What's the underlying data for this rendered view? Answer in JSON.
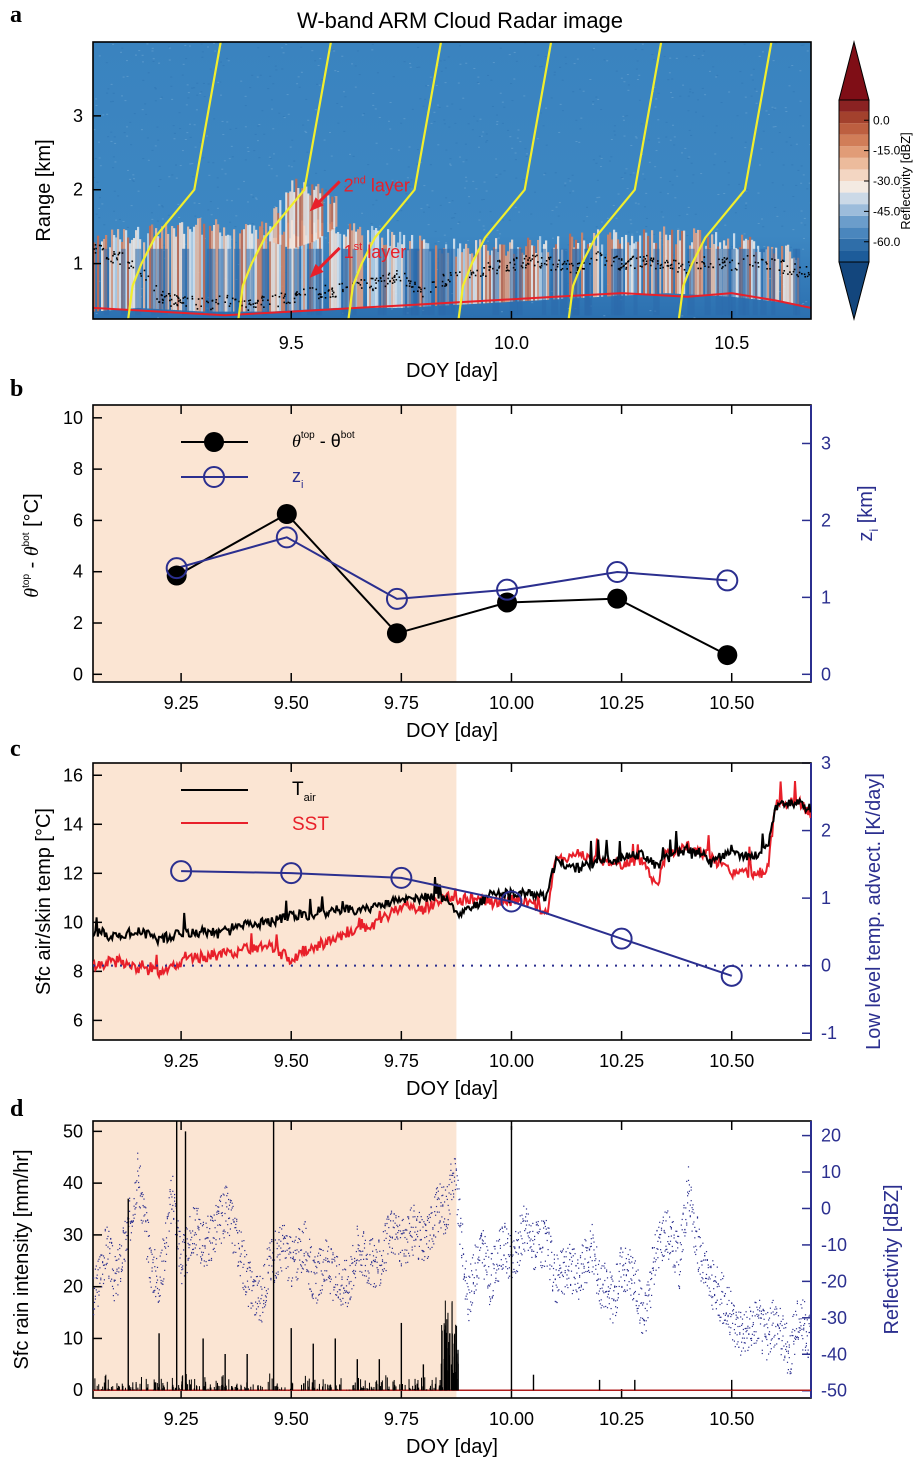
{
  "figure_title": "W-band ARM Cloud Radar image",
  "panel_labels": [
    "a",
    "b",
    "c",
    "d"
  ],
  "colors": {
    "black": "#000000",
    "red": "#e8202a",
    "blue": "#2b2f8f",
    "yellow": "#f2ee2c",
    "shade": "#fbe5d3"
  },
  "chart_data": [
    {
      "id": "a",
      "type": "heatmap",
      "title": "W-band ARM Cloud Radar image",
      "xlabel": "DOY [day]",
      "ylabel": "Range [km]",
      "xlim": [
        9.05,
        10.68
      ],
      "ylim": [
        0.25,
        4.0
      ],
      "xticks": [
        "9.5",
        "10.0",
        "10.5"
      ],
      "xtick_values": [
        9.5,
        10.0,
        10.5
      ],
      "yticks": [
        "1",
        "2",
        "3"
      ],
      "ytick_values": [
        1,
        2,
        3
      ],
      "colorbar": {
        "label": "Reflectivity [dBZ]",
        "ticks": [
          "0.0",
          "-15.0",
          "-30.0",
          "-45.0",
          "-60.0"
        ],
        "tick_values": [
          0,
          -15,
          -30,
          -45,
          -60
        ],
        "range": [
          -70,
          10
        ]
      },
      "annotations": [
        {
          "text": "2",
          "sup": "nd",
          "rest": " layer",
          "x": 9.56,
          "y": 1.95
        },
        {
          "text": "1",
          "sup": "st",
          "rest": " layer",
          "x": 9.56,
          "y": 1.05
        }
      ],
      "cloud_layers": [
        {
          "name": "1st layer",
          "x": [
            9.05,
            9.15,
            9.3,
            9.45,
            9.6,
            9.75,
            9.9,
            10.05,
            10.2,
            10.35,
            10.5,
            10.65
          ],
          "base": [
            0.35,
            0.4,
            0.35,
            0.35,
            0.4,
            0.4,
            0.45,
            0.5,
            0.55,
            0.6,
            0.55,
            0.45
          ],
          "top": [
            1.3,
            1.4,
            1.5,
            1.45,
            1.5,
            1.3,
            1.2,
            1.25,
            1.35,
            1.4,
            1.3,
            1.1
          ]
        },
        {
          "name": "2nd layer",
          "x": [
            9.45,
            9.5,
            9.55,
            9.6
          ],
          "base": [
            1.3,
            1.2,
            1.3,
            1.5
          ],
          "top": [
            1.6,
            2.05,
            2.0,
            1.85
          ]
        }
      ],
      "cloud_base_series": {
        "x": [
          9.05,
          9.1,
          9.15,
          9.2,
          9.25,
          9.3,
          9.35,
          9.4,
          9.45,
          9.5,
          9.55,
          9.6,
          9.65,
          9.7,
          9.75,
          9.8,
          9.85,
          9.9,
          9.95,
          10.0,
          10.05,
          10.1,
          10.15,
          10.2,
          10.25,
          10.3,
          10.35,
          10.4,
          10.45,
          10.5,
          10.55,
          10.6,
          10.65
        ],
        "y": [
          1.2,
          1.1,
          1.0,
          0.55,
          0.5,
          0.45,
          0.5,
          0.45,
          0.5,
          0.55,
          0.6,
          0.65,
          0.7,
          0.75,
          0.85,
          0.6,
          0.8,
          0.85,
          0.95,
          1.0,
          1.05,
          1.0,
          0.95,
          1.1,
          1.0,
          1.05,
          1.0,
          0.95,
          1.05,
          1.0,
          1.05,
          1.0,
          0.9
        ]
      },
      "surface_series": {
        "x": [
          9.05,
          9.2,
          9.35,
          9.5,
          9.65,
          9.8,
          9.95,
          10.1,
          10.25,
          10.4,
          10.5,
          10.6,
          10.68
        ],
        "y": [
          0.4,
          0.35,
          0.3,
          0.35,
          0.4,
          0.45,
          0.5,
          0.55,
          0.6,
          0.55,
          0.6,
          0.5,
          0.4
        ]
      },
      "sonde_tracks": [
        {
          "start": 9.13,
          "end": 9.34
        },
        {
          "start": 9.38,
          "end": 9.59
        },
        {
          "start": 9.63,
          "end": 9.84
        },
        {
          "start": 9.88,
          "end": 10.09
        },
        {
          "start": 10.13,
          "end": 10.34
        },
        {
          "start": 10.38,
          "end": 10.59
        }
      ]
    },
    {
      "id": "b",
      "type": "line",
      "xlabel": "DOY [day]",
      "ylabel": "θtop - θbot [°C]",
      "y2label": "zi [km]",
      "xlim": [
        9.05,
        10.68
      ],
      "ylim": [
        -0.3,
        10.5
      ],
      "y2lim": [
        -0.1,
        3.5
      ],
      "xticks": [
        "9.25",
        "9.50",
        "9.75",
        "10.00",
        "10.25",
        "10.50"
      ],
      "xtick_values": [
        9.25,
        9.5,
        9.75,
        10.0,
        10.25,
        10.5
      ],
      "yticks": [
        "0",
        "2",
        "4",
        "6",
        "8",
        "10"
      ],
      "ytick_values": [
        0,
        2,
        4,
        6,
        8,
        10
      ],
      "y2ticks": [
        "0",
        "1",
        "2",
        "3"
      ],
      "y2tick_values": [
        0,
        1,
        2,
        3
      ],
      "shade": [
        9.05,
        9.875
      ],
      "legend": [
        {
          "base": "θ",
          "sup1": "top",
          "mid": " - θ",
          "sup2": "bot"
        },
        {
          "base": "z",
          "sub": "i"
        }
      ],
      "series": [
        {
          "x": [
            9.24,
            9.49,
            9.74,
            9.99,
            10.24,
            10.49
          ],
          "values": [
            3.85,
            6.25,
            1.6,
            2.8,
            2.95,
            0.75
          ],
          "axis": "left",
          "marker": "filled"
        },
        {
          "x": [
            9.24,
            9.49,
            9.74,
            9.99,
            10.24,
            10.49
          ],
          "values": [
            1.38,
            1.78,
            0.98,
            1.1,
            1.33,
            1.22
          ],
          "axis": "right",
          "marker": "open"
        }
      ]
    },
    {
      "id": "c",
      "type": "line",
      "xlabel": "DOY [day]",
      "ylabel": "Sfc air/skin temp [°C]",
      "y2label": "Low level temp. advect. [K/day]",
      "xlim": [
        9.05,
        10.68
      ],
      "ylim": [
        5.2,
        16.5
      ],
      "y2lim": [
        -1.1,
        3.0
      ],
      "xticks": [
        "9.25",
        "9.50",
        "9.75",
        "10.00",
        "10.25",
        "10.50"
      ],
      "xtick_values": [
        9.25,
        9.5,
        9.75,
        10.0,
        10.25,
        10.5
      ],
      "yticks": [
        "6",
        "8",
        "10",
        "12",
        "14",
        "16"
      ],
      "ytick_values": [
        6,
        8,
        10,
        12,
        14,
        16
      ],
      "y2ticks": [
        "-1",
        "0",
        "1",
        "2",
        "3"
      ],
      "y2tick_values": [
        -1,
        0,
        1,
        2,
        3
      ],
      "shade": [
        9.05,
        9.875
      ],
      "legend": [
        {
          "base": "T",
          "sub": "air"
        },
        {
          "base": "SST"
        }
      ],
      "series": [
        {
          "x": [
            9.05,
            9.1,
            9.15,
            9.2,
            9.25,
            9.3,
            9.35,
            9.4,
            9.45,
            9.5,
            9.55,
            9.6,
            9.65,
            9.7,
            9.75,
            9.8,
            9.85,
            9.875,
            9.9,
            9.95,
            10.0,
            10.05,
            10.08,
            10.1,
            10.15,
            10.2,
            10.25,
            10.3,
            10.33,
            10.35,
            10.4,
            10.45,
            10.5,
            10.55,
            10.58,
            10.6,
            10.65,
            10.68
          ],
          "values": [
            9.6,
            9.4,
            9.7,
            9.3,
            9.6,
            9.6,
            9.7,
            9.9,
            10.0,
            10.3,
            10.3,
            10.5,
            10.5,
            10.7,
            10.9,
            11.0,
            11.0,
            10.4,
            10.5,
            11.1,
            11.2,
            11.2,
            11.0,
            12.5,
            12.2,
            12.5,
            12.6,
            12.8,
            12.3,
            12.6,
            13.0,
            12.6,
            12.8,
            12.7,
            13.0,
            14.7,
            14.9,
            14.6
          ],
          "axis": "left"
        },
        {
          "x": [
            9.05,
            9.1,
            9.15,
            9.2,
            9.25,
            9.3,
            9.35,
            9.4,
            9.45,
            9.5,
            9.55,
            9.6,
            9.65,
            9.7,
            9.75,
            9.8,
            9.85,
            9.875,
            9.9,
            9.95,
            10.0,
            10.05,
            10.08,
            10.1,
            10.15,
            10.2,
            10.25,
            10.3,
            10.33,
            10.35,
            10.4,
            10.45,
            10.5,
            10.55,
            10.58,
            10.6,
            10.65,
            10.68
          ],
          "values": [
            8.2,
            8.5,
            8.1,
            8.0,
            8.4,
            8.6,
            8.7,
            8.9,
            9.0,
            8.5,
            9.0,
            9.3,
            9.6,
            10.0,
            10.7,
            10.5,
            11.1,
            10.8,
            11.0,
            10.8,
            10.9,
            10.8,
            10.3,
            12.5,
            12.8,
            12.5,
            12.4,
            12.5,
            11.4,
            12.8,
            13.1,
            12.7,
            12.0,
            12.0,
            12.0,
            14.8,
            15.0,
            14.4
          ],
          "axis": "left"
        },
        {
          "x": [
            9.25,
            9.5,
            9.75,
            10.0,
            10.25,
            10.5
          ],
          "values": [
            1.4,
            1.37,
            1.3,
            0.95,
            0.4,
            -0.15
          ],
          "axis": "right",
          "marker": "open"
        }
      ],
      "reference_line": {
        "axis": "right",
        "value": 0
      }
    },
    {
      "id": "d",
      "type": "scatter",
      "xlabel": "DOY [day]",
      "ylabel": "Sfc rain intensity [mm/hr]",
      "y2label": "Reflectivity [dBZ]",
      "xlim": [
        9.05,
        10.68
      ],
      "ylim": [
        -1.5,
        52
      ],
      "y2lim": [
        -52,
        24
      ],
      "xticks": [
        "9.25",
        "9.50",
        "9.75",
        "10.00",
        "10.25",
        "10.50"
      ],
      "xtick_values": [
        9.25,
        9.5,
        9.75,
        10.0,
        10.25,
        10.5
      ],
      "yticks": [
        "0",
        "10",
        "20",
        "30",
        "40",
        "50"
      ],
      "ytick_values": [
        0,
        10,
        20,
        30,
        40,
        50
      ],
      "y2ticks": [
        "-50",
        "-40",
        "-30",
        "-20",
        "-10",
        "0",
        "10",
        "20"
      ],
      "y2tick_values": [
        -50,
        -40,
        -30,
        -20,
        -10,
        0,
        10,
        20
      ],
      "shade": [
        9.05,
        9.875
      ],
      "series": [
        {
          "x": [
            9.05,
            9.08,
            9.1,
            9.13,
            9.15,
            9.18,
            9.2,
            9.23,
            9.25,
            9.28,
            9.3,
            9.33,
            9.35,
            9.38,
            9.4,
            9.43,
            9.45,
            9.48,
            9.5,
            9.53,
            9.55,
            9.58,
            9.6,
            9.63,
            9.65,
            9.68,
            9.7,
            9.73,
            9.75,
            9.78,
            9.8,
            9.83,
            9.85,
            9.87,
            9.9,
            9.93,
            9.95,
            9.98,
            10.0,
            10.03,
            10.05,
            10.08,
            10.1,
            10.13,
            10.15,
            10.18,
            10.2,
            10.23,
            10.25,
            10.28,
            10.3,
            10.33,
            10.35,
            10.38,
            10.4,
            10.43,
            10.45,
            10.48,
            10.5,
            10.53,
            10.55,
            10.58,
            10.6,
            10.63,
            10.65,
            10.68
          ],
          "values": [
            -25,
            -10,
            -20,
            -5,
            10,
            -15,
            -20,
            5,
            -15,
            -5,
            -10,
            -5,
            0,
            -10,
            -20,
            -25,
            -15,
            -10,
            -15,
            -10,
            -20,
            -15,
            -20,
            -20,
            -10,
            -15,
            -15,
            -5,
            -10,
            -5,
            -10,
            0,
            0,
            10,
            -25,
            -10,
            -20,
            -10,
            -15,
            -5,
            -10,
            -10,
            -20,
            -15,
            -20,
            -10,
            -20,
            -25,
            -15,
            -20,
            -30,
            -10,
            -5,
            -15,
            5,
            -15,
            -20,
            -25,
            -30,
            -35,
            -30,
            -35,
            -30,
            -40,
            -30,
            -35
          ],
          "axis": "right"
        },
        {
          "x": [
            9.13,
            9.2,
            9.24,
            9.26,
            9.3,
            9.35,
            9.4,
            9.46,
            9.5,
            9.55,
            9.6,
            9.65,
            9.7,
            9.75,
            9.8,
            9.86,
            9.87,
            10.0,
            10.05,
            10.2,
            10.28,
            10.5
          ],
          "values": [
            37,
            11,
            52,
            50,
            10,
            7,
            7,
            52,
            12,
            9,
            10,
            6,
            6,
            13,
            5,
            11,
            9,
            51,
            3,
            2,
            2,
            2
          ],
          "axis": "left"
        }
      ]
    }
  ]
}
